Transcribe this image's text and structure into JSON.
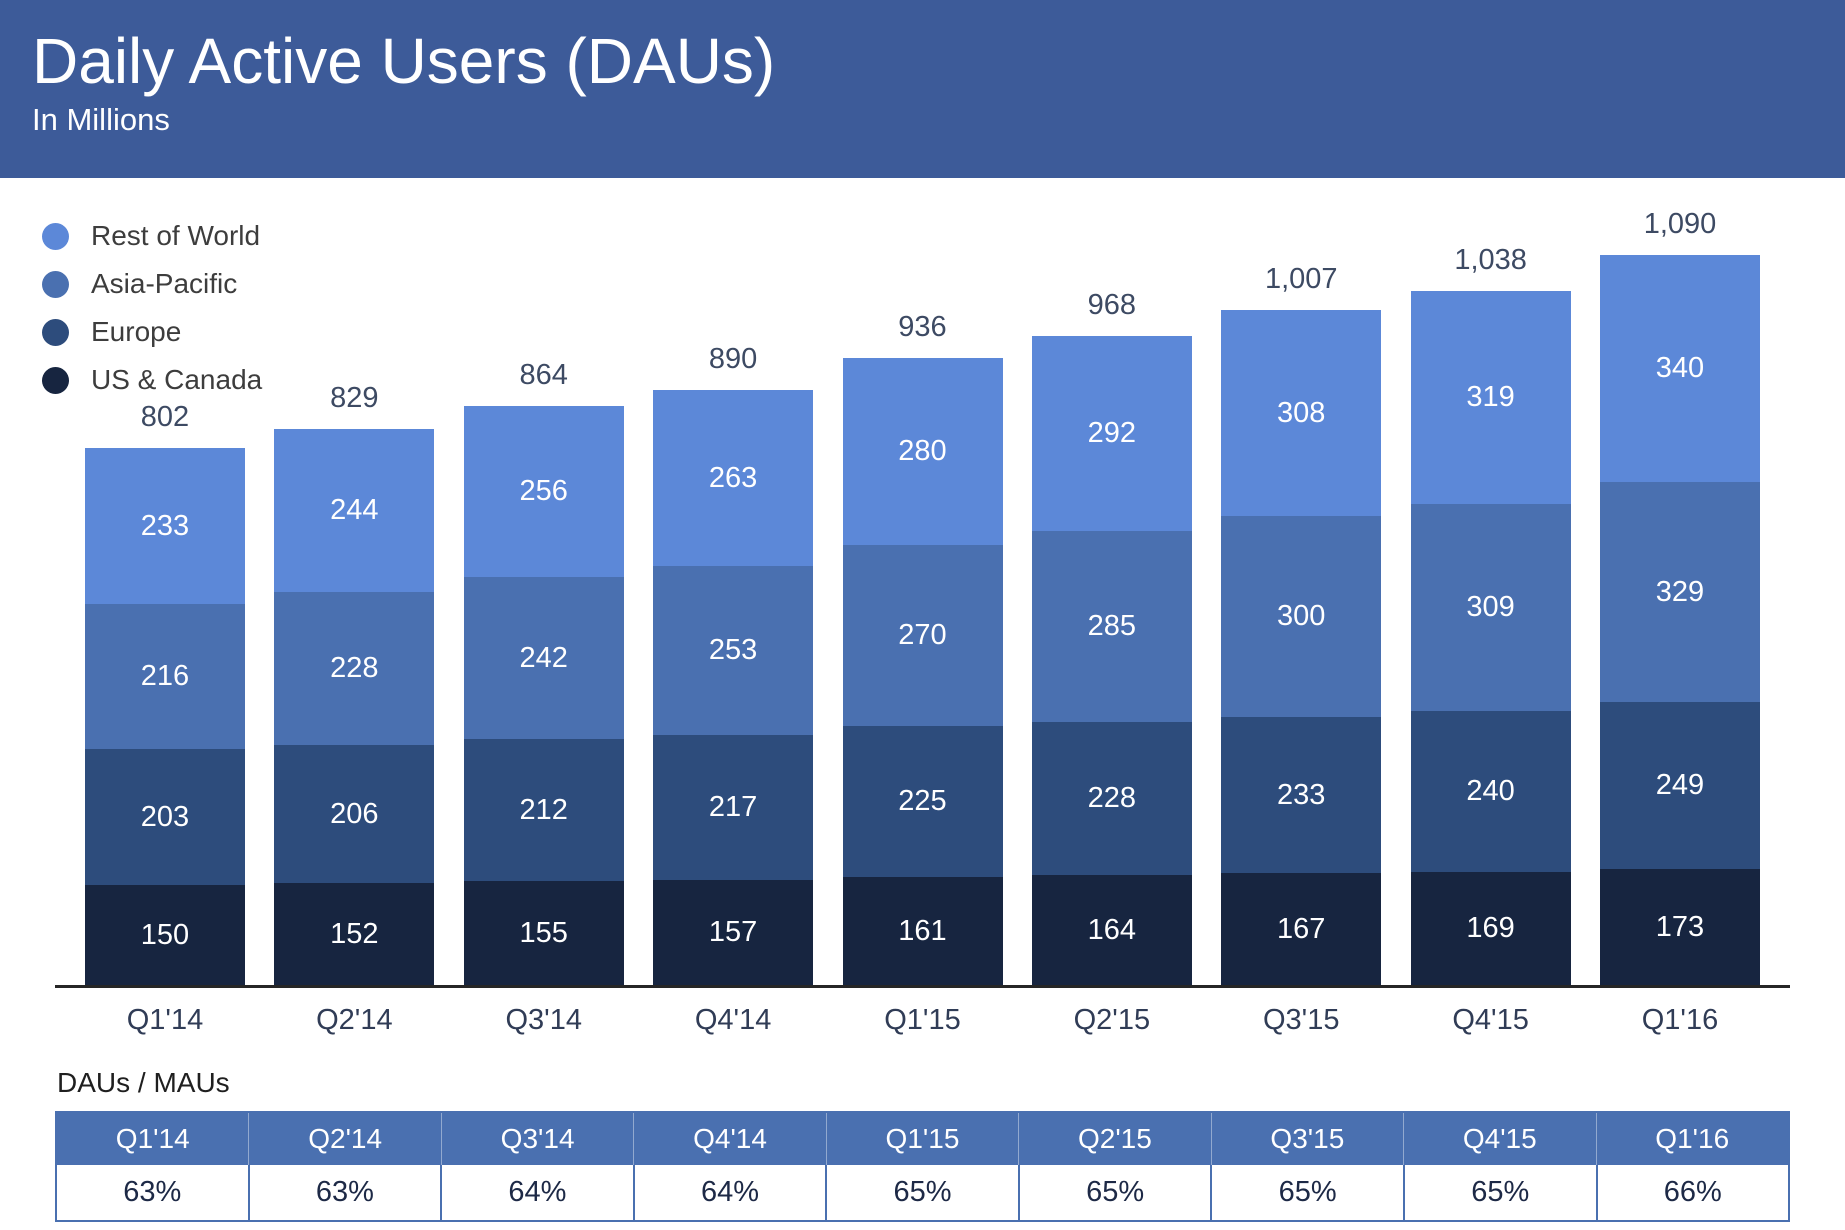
{
  "header": {
    "title": "Daily Active Users (DAUs)",
    "subtitle": "In Millions"
  },
  "colors": {
    "header_bg": "#3d5b99",
    "rest_of_world": "#5c88d8",
    "asia_pacific": "#4a70b0",
    "europe": "#2d4c7c",
    "us_canada": "#172540",
    "axis_line": "#262626",
    "table_accent": "#4a70b0",
    "bar_total_text": "#3d4a63",
    "axis_label_text": "#303c56",
    "percent_text": "#1d2946",
    "legend_text": "#3d3d3d"
  },
  "chart_data": {
    "type": "bar",
    "stacked": true,
    "title": "Daily Active Users (DAUs)",
    "subtitle": "In Millions",
    "xlabel": "",
    "ylabel": "In Millions",
    "ylim": [
      0,
      1100
    ],
    "grid": false,
    "legend_position": "top-left",
    "categories": [
      "Q1'14",
      "Q2'14",
      "Q3'14",
      "Q4'14",
      "Q1'15",
      "Q2'15",
      "Q3'15",
      "Q4'15",
      "Q1'16"
    ],
    "series": [
      {
        "name": "US & Canada",
        "color_key": "us_canada",
        "values": [
          150,
          152,
          155,
          157,
          161,
          164,
          167,
          169,
          173
        ]
      },
      {
        "name": "Europe",
        "color_key": "europe",
        "values": [
          203,
          206,
          212,
          217,
          225,
          228,
          233,
          240,
          249
        ]
      },
      {
        "name": "Asia-Pacific",
        "color_key": "asia_pacific",
        "values": [
          216,
          228,
          242,
          253,
          270,
          285,
          300,
          309,
          329
        ]
      },
      {
        "name": "Rest of World",
        "color_key": "rest_of_world",
        "values": [
          233,
          244,
          256,
          263,
          280,
          292,
          308,
          319,
          340
        ]
      }
    ],
    "totals": [
      "802",
      "829",
      "864",
      "890",
      "936",
      "968",
      "1,007",
      "1,038",
      "1,090"
    ],
    "legend": [
      {
        "label": "Rest of World",
        "color_key": "rest_of_world"
      },
      {
        "label": "Asia-Pacific",
        "color_key": "asia_pacific"
      },
      {
        "label": "Europe",
        "color_key": "europe"
      },
      {
        "label": "US & Canada",
        "color_key": "us_canada"
      }
    ]
  },
  "ratio_table": {
    "label": "DAUs / MAUs",
    "columns": [
      "Q1'14",
      "Q2'14",
      "Q3'14",
      "Q4'14",
      "Q1'15",
      "Q2'15",
      "Q3'15",
      "Q4'15",
      "Q1'16"
    ],
    "values": [
      "63%",
      "63%",
      "64%",
      "64%",
      "65%",
      "65%",
      "65%",
      "65%",
      "66%"
    ]
  }
}
